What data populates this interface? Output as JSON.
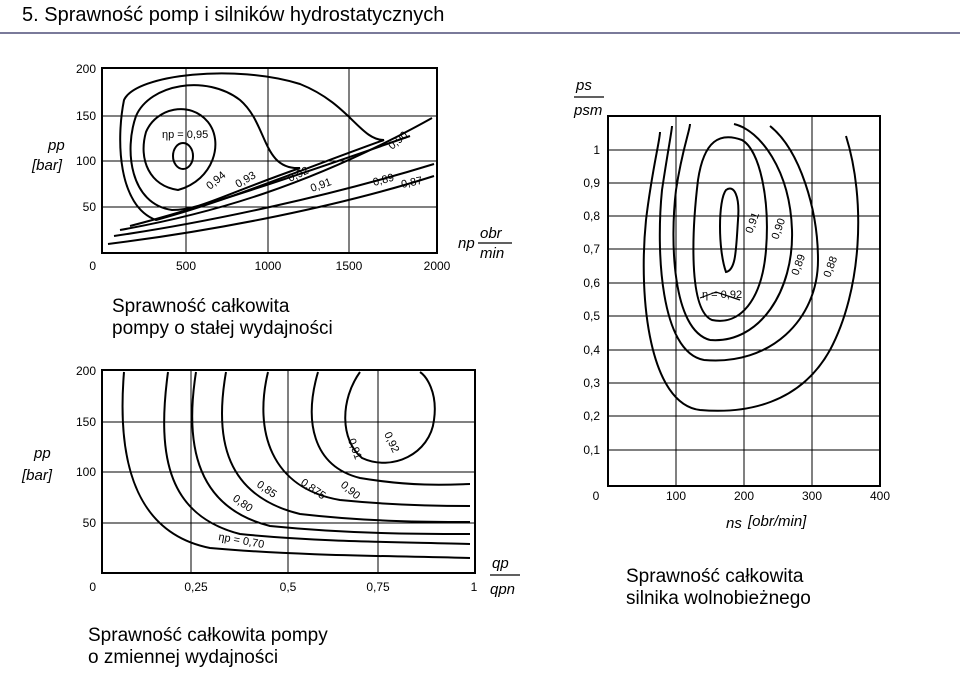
{
  "slide": {
    "title": "5. Sprawność pomp i silników hydrostatycznych",
    "accent_color": "#7a7a9a"
  },
  "charts": {
    "pump_constant": {
      "caption_line1": "Sprawność  całkowita",
      "caption_line2": "pompy o stałej wydajności",
      "y_label_top": "pp",
      "y_label_unit": "[bar]",
      "x_label": "np",
      "x_unit_top": "obr",
      "x_unit_bottom": "min",
      "y_ticks": [
        "0",
        "50",
        "100",
        "150",
        "200"
      ],
      "x_ticks": [
        "500",
        "1000",
        "1500",
        "2000"
      ],
      "iso_labels": [
        "ηp = 0,95",
        "0,94",
        "0,93",
        "0,92",
        "0,91",
        "0,90",
        "0,89",
        "0,87"
      ]
    },
    "pump_variable": {
      "caption_line1": "Sprawność  całkowita pompy",
      "caption_line2": "o zmiennej wydajności",
      "y_label_top": "pp",
      "y_label_unit": "[bar]",
      "x_label_top": "qp",
      "x_label_bottom": "qpn",
      "y_ticks": [
        "0",
        "50",
        "100",
        "150",
        "200"
      ],
      "x_ticks": [
        "0,25",
        "0,5",
        "0,75",
        "1"
      ],
      "iso_labels": [
        "ηp = 0,70",
        "0,80",
        "0,85",
        "0,875",
        "0,90",
        "0,91",
        "0,92"
      ]
    },
    "motor": {
      "caption_line1": "Sprawność całkowita",
      "caption_line2": "silnika wolnobieżnego",
      "y_label_top": "ps",
      "y_label_bottom": "psm",
      "x_label": "ns",
      "x_unit": "[obr/min]",
      "y_ticks": [
        "0,1",
        "0,2",
        "0,3",
        "0,4",
        "0,5",
        "0,6",
        "0,7",
        "0,8",
        "0,9",
        "1"
      ],
      "x_ticks": [
        "0",
        "100",
        "200",
        "300",
        "400"
      ],
      "iso_labels": [
        "η = 0,92",
        "0,91",
        "0,90",
        "0,89",
        "0,88"
      ]
    }
  }
}
